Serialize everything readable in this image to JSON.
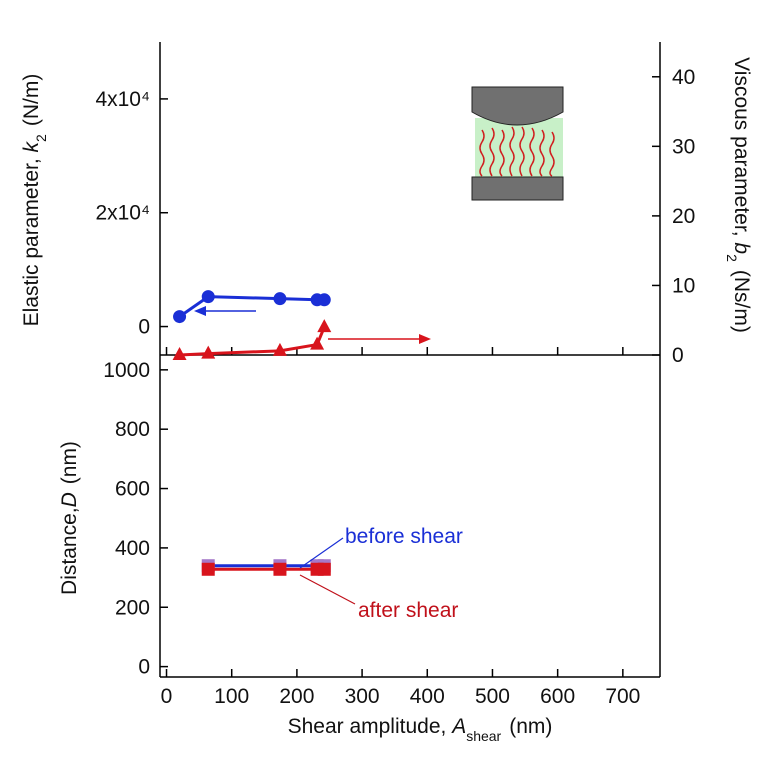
{
  "chart_data": [
    {
      "type": "line",
      "ylabel": {
        "text": "Elastic parameter, ",
        "symbol": "k",
        "subscript": "2",
        "unit": "(N/m)"
      },
      "y2label": {
        "text": "Viscous parameter, ",
        "symbol": "b",
        "subscript": "2",
        "unit": "(Ns/m)"
      },
      "xlim": [
        -10,
        757
      ],
      "ylim": [
        -5000,
        50000
      ],
      "y2lim": [
        0,
        45
      ],
      "yticks": [
        0,
        {
          "value": 20000,
          "label": "2x10⁴"
        },
        {
          "value": 40000,
          "label": "4x10⁴"
        }
      ],
      "y2ticks": [
        0,
        10,
        20,
        30,
        40
      ],
      "series": [
        {
          "color": "#1a2fd6",
          "marker": "circle",
          "x": [
            20,
            64,
            174,
            231,
            242
          ],
          "values": [
            1750,
            5260,
            4900,
            4700,
            4700
          ]
        },
        {
          "color": "#d8141c",
          "marker": "triangle",
          "axis": "y2",
          "x": [
            20,
            64,
            174,
            231,
            242
          ],
          "values": [
            0,
            0.2,
            0.6,
            1.5,
            4
          ]
        }
      ]
    },
    {
      "type": "line",
      "ylabel": {
        "text": "Distance,",
        "symbol": "D",
        "unit": "(nm)"
      },
      "xlabel": {
        "text": "Shear amplitude, ",
        "symbol": "A",
        "subscript": "shear",
        "unit": "(nm)"
      },
      "xlim": [
        -10,
        757
      ],
      "ylim": [
        -35,
        1050
      ],
      "xticks": [
        0,
        100,
        200,
        300,
        400,
        500,
        600,
        700
      ],
      "yticks": [
        0,
        200,
        400,
        600,
        800,
        1000
      ],
      "series": [
        {
          "color": "#1a2fd6",
          "marker_color": "#a678c8",
          "marker": "square",
          "x": [
            64,
            174,
            231,
            242
          ],
          "values": [
            340,
            340,
            340,
            340
          ]
        },
        {
          "color": "#d8141c",
          "marker_color": "#d8141c",
          "marker": "square",
          "x": [
            64,
            174,
            231,
            242
          ],
          "values": [
            328,
            328,
            328,
            328
          ]
        }
      ],
      "annotations": [
        {
          "text": "before shear",
          "color": "#1a2fd6"
        },
        {
          "text": "after shear",
          "color": "#c0101a"
        }
      ]
    }
  ]
}
